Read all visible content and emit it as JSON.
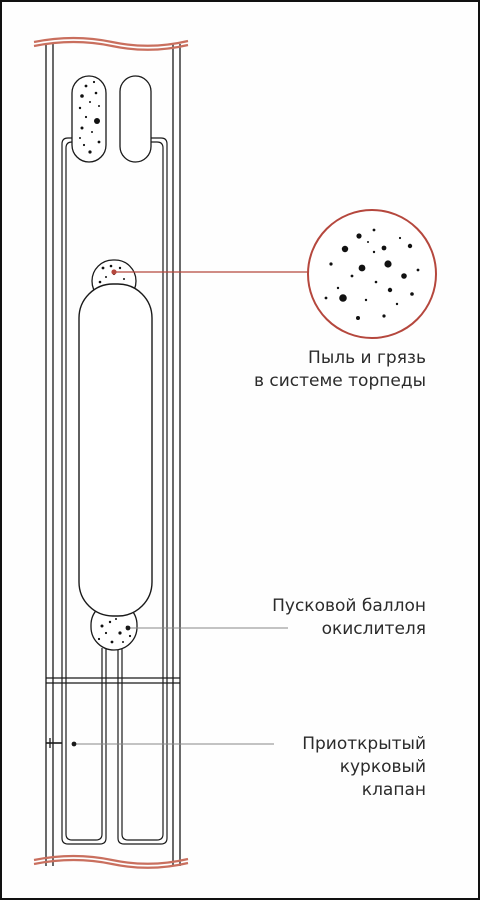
{
  "labels": {
    "dust": {
      "line1": "Пыль и грязь",
      "line2": "в системе торпеды"
    },
    "balloon": {
      "line1": "Пусковой баллон",
      "line2": "окислителя"
    },
    "valve": {
      "line1": "Приоткрытый",
      "line2": "курковый",
      "line3": "клапан"
    }
  },
  "colors": {
    "pipe_cut": "#c96f5e",
    "callout": "#b5473d",
    "outline": "#1a1a1a",
    "dust": "#111111"
  }
}
